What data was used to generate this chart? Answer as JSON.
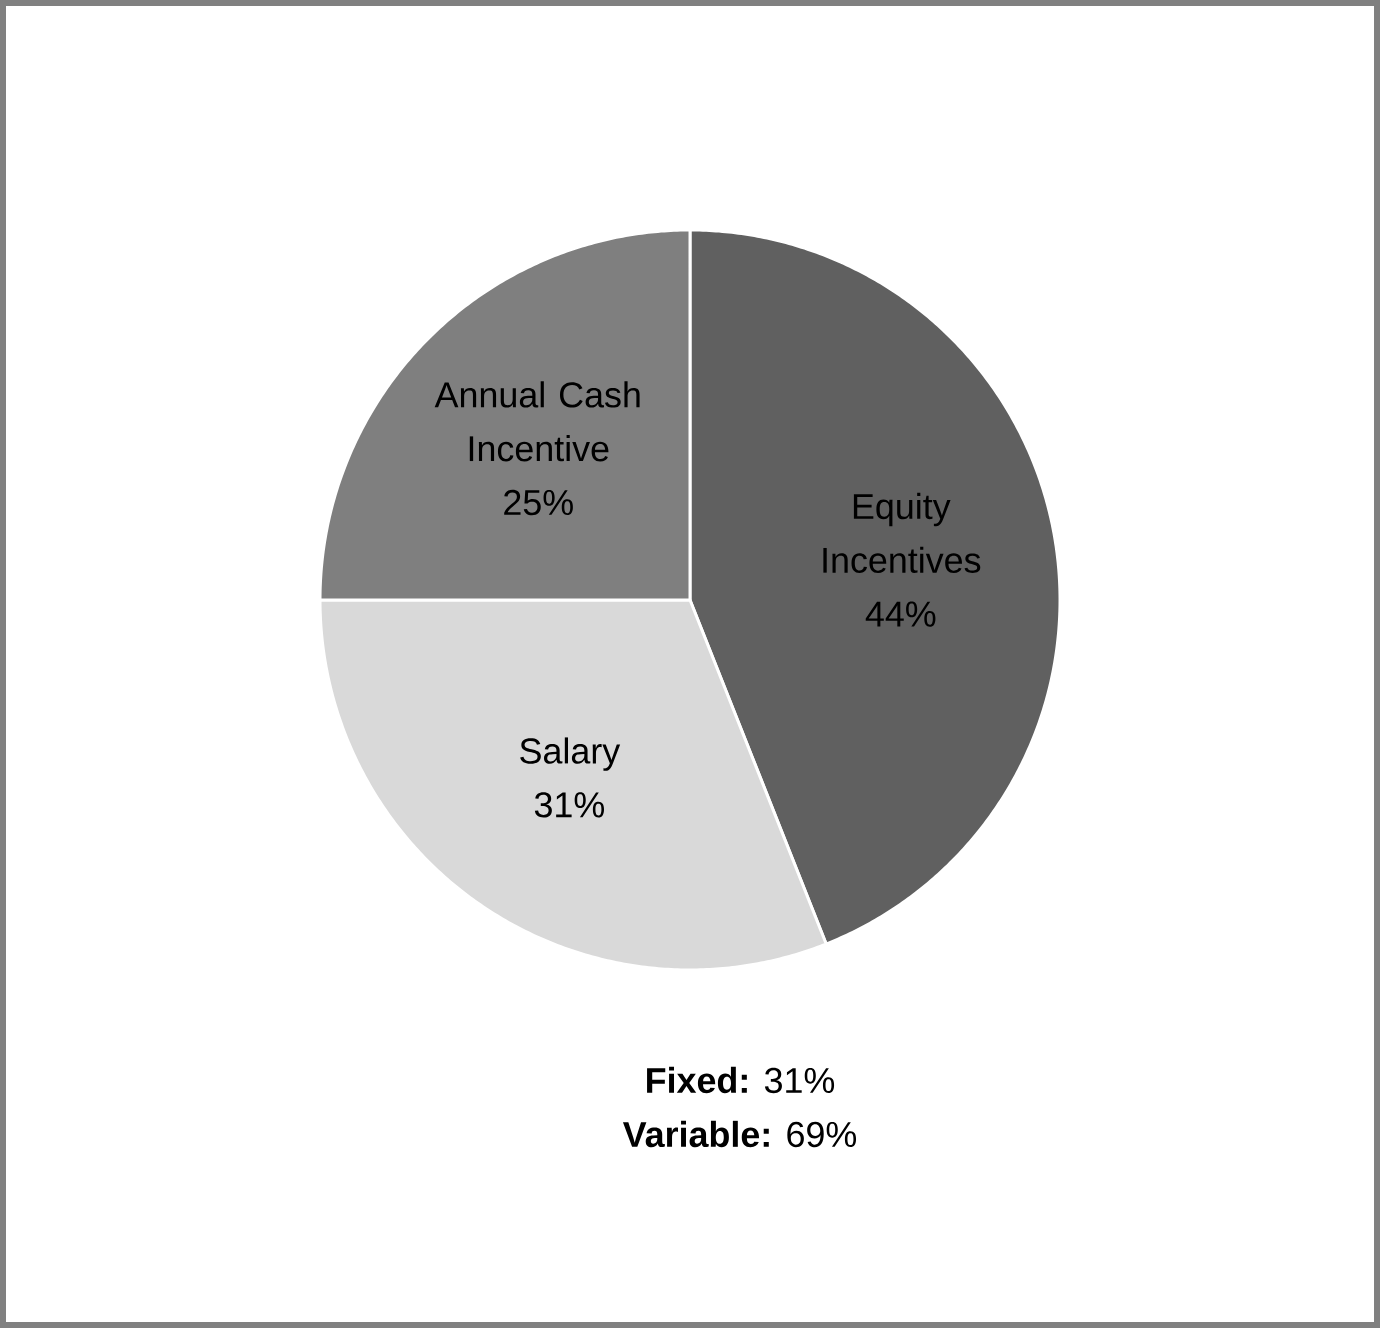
{
  "chart_data": {
    "type": "pie",
    "categories": [
      "Equity Incentives",
      "Salary",
      "Annual Cash Incentive"
    ],
    "values": [
      44,
      31,
      25
    ],
    "value_labels": [
      "44%",
      "31%",
      "25%"
    ],
    "colors": [
      "#606060",
      "#d9d9d9",
      "#7f7f7f"
    ],
    "annotations": [
      "**Fixed:** 31%",
      "**Variable:** 69%"
    ]
  }
}
